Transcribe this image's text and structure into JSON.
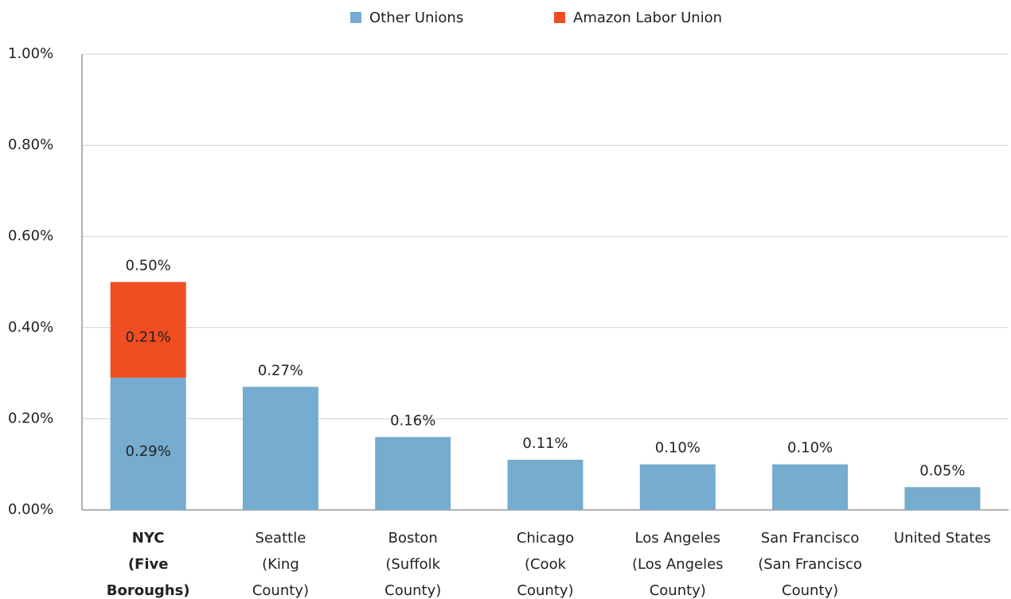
{
  "chart_data": {
    "type": "stacked_bar",
    "categories": [
      [
        "NYC",
        "(Five",
        "Boroughs)"
      ],
      [
        "Seattle",
        "(King",
        "County)"
      ],
      [
        "Boston",
        "(Suffolk",
        "County)"
      ],
      [
        "Chicago",
        "(Cook",
        "County)"
      ],
      [
        "Los Angeles",
        "(Los Angeles",
        "County)"
      ],
      [
        "San Francisco",
        "(San Francisco",
        "County)"
      ],
      [
        "United States"
      ]
    ],
    "bold_categories": [
      0
    ],
    "series": [
      {
        "name": "Other Unions",
        "color": "#75acd0",
        "values": [
          0.29,
          0.27,
          0.16,
          0.11,
          0.1,
          0.1,
          0.05
        ],
        "value_labels": [
          "0.29%",
          null,
          null,
          null,
          null,
          null,
          null
        ]
      },
      {
        "name": "Amazon Labor Union",
        "color": "#f04d23",
        "values": [
          0.21,
          null,
          null,
          null,
          null,
          null,
          null
        ],
        "value_labels": [
          "0.21%",
          null,
          null,
          null,
          null,
          null,
          null
        ]
      }
    ],
    "totals": [
      0.5,
      0.27,
      0.16,
      0.11,
      0.1,
      0.1,
      0.05
    ],
    "total_labels": [
      "0.50%",
      "0.27%",
      "0.16%",
      "0.11%",
      "0.10%",
      "0.10%",
      "0.05%"
    ],
    "ylim": [
      0,
      1
    ],
    "yticks": [
      {
        "value": 0,
        "label": "0.00%"
      },
      {
        "value": 0.2,
        "label": "0.20%"
      },
      {
        "value": 0.4,
        "label": "0.40%"
      },
      {
        "value": 0.6,
        "label": "0.60%"
      },
      {
        "value": 0.8,
        "label": "0.80%"
      },
      {
        "value": 1,
        "label": "1.00%"
      }
    ],
    "grid": true,
    "legend": "top"
  }
}
